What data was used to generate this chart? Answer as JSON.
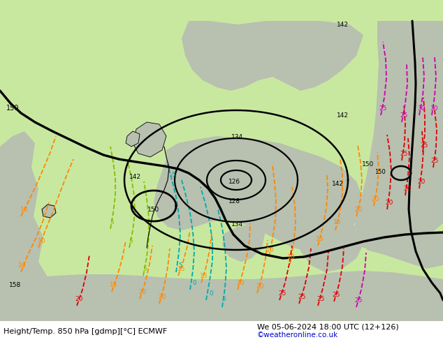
{
  "title_left": "Height/Temp. 850 hPa [gdmp][°C] ECMWF",
  "title_right": "We 05-06-2024 18:00 UTC (12+126)",
  "credit": "©weatheronline.co.uk",
  "fig_width": 6.34,
  "fig_height": 4.9,
  "dpi": 100,
  "map_bg": "#c8e8a0",
  "gray_land": "#b0b8a8",
  "title_fontsize": 8.0,
  "credit_color": "#0000cc",
  "credit_fontsize": 7.5,
  "label_fontsize": 7.0,
  "orange": "#ff8800",
  "red": "#dd0000",
  "magenta": "#cc00aa",
  "teal": "#00aaaa",
  "lime": "#88bb00",
  "black": "#000000"
}
